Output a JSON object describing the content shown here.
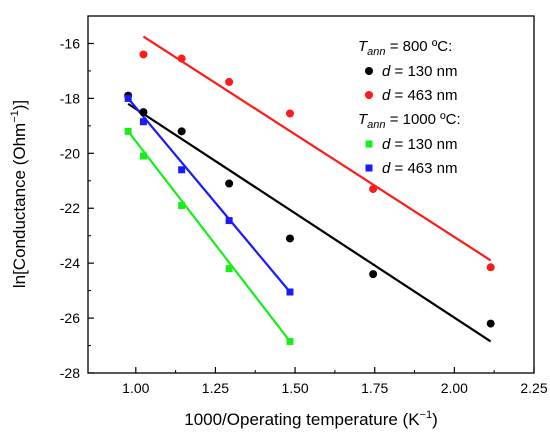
{
  "chart_data": {
    "type": "scatter",
    "xlabel_main": "1000/Operating temperature (K",
    "xlabel_exp": "−1",
    "xlabel_end": ")",
    "ylabel_main": "ln[Conductance (Ohm",
    "ylabel_exp": "−1",
    "ylabel_end": ")]",
    "xlim": [
      0.85,
      2.25
    ],
    "ylim": [
      -28,
      -15
    ],
    "x_ticks": [
      1.0,
      1.25,
      1.5,
      1.75,
      2.0,
      2.25
    ],
    "x_tick_labels": [
      "1.00",
      "1.25",
      "1.50",
      "1.75",
      "2.00",
      "2.25"
    ],
    "y_ticks": [
      -28,
      -26,
      -24,
      -22,
      -20,
      -18,
      -16
    ],
    "y_tick_labels": [
      "-28",
      "-26",
      "-24",
      "-22",
      "-20",
      "-18",
      "-16"
    ],
    "grid": false,
    "legend_position": "top-right",
    "legend_groups": [
      {
        "prefix": "T",
        "subscript": "ann",
        "suffix": " = 800 ºC:",
        "series": [
          0,
          1
        ]
      },
      {
        "prefix": "T",
        "subscript": "ann",
        "suffix": " = 1000 ºC:",
        "series": [
          2,
          3
        ]
      }
    ],
    "series": [
      {
        "name_var": "d",
        "name_rest": " = 130 nm",
        "color": "#000000",
        "marker": "circle",
        "x": [
          0.976,
          1.024,
          1.144,
          1.293,
          1.484,
          1.745,
          2.114
        ],
        "y": [
          -17.9,
          -18.5,
          -19.2,
          -21.1,
          -23.1,
          -24.4,
          -26.2
        ],
        "fit": {
          "x": [
            0.976,
            2.114
          ],
          "y": [
            -18.2,
            -26.85
          ]
        }
      },
      {
        "name_var": "d",
        "name_rest": " = 463 nm",
        "color": "#ff1a1a",
        "marker": "circle",
        "x": [
          1.024,
          1.144,
          1.293,
          1.484,
          1.745,
          2.114
        ],
        "y": [
          -16.4,
          -16.55,
          -17.4,
          -18.55,
          -21.3,
          -24.15
        ],
        "fit": {
          "x": [
            1.024,
            2.114
          ],
          "y": [
            -15.75,
            -23.9
          ]
        }
      },
      {
        "name_var": "d",
        "name_rest": " = 130 nm",
        "color": "#1aee1a",
        "marker": "square",
        "x": [
          0.976,
          1.024,
          1.144,
          1.293,
          1.484
        ],
        "y": [
          -19.2,
          -20.1,
          -21.9,
          -24.2,
          -26.85
        ],
        "fit": {
          "x": [
            0.976,
            1.484
          ],
          "y": [
            -19.2,
            -26.85
          ]
        }
      },
      {
        "name_var": "d",
        "name_rest": " = 463 nm",
        "color": "#1a1aff",
        "marker": "square",
        "x": [
          0.976,
          1.024,
          1.144,
          1.293,
          1.484
        ],
        "y": [
          -18.0,
          -18.85,
          -20.6,
          -22.45,
          -25.05
        ],
        "fit": {
          "x": [
            0.976,
            1.484
          ],
          "y": [
            -18.0,
            -25.05
          ]
        }
      }
    ]
  }
}
